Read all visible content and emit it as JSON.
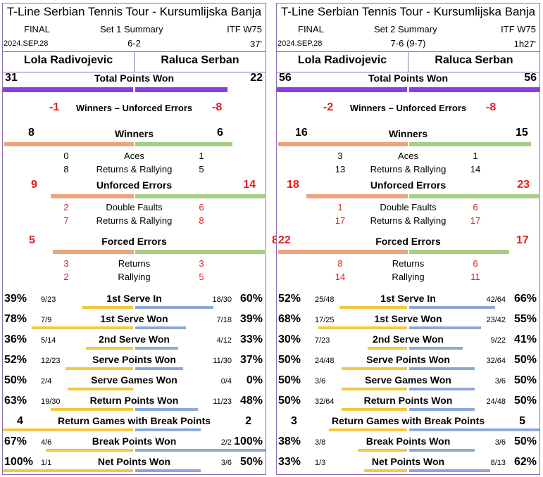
{
  "panels": [
    {
      "title": "T-Line Serbian Tennis Tour - Kursumlijska Banja",
      "round": "FINAL",
      "summary": "Set 1 Summary",
      "event": "ITF W75",
      "date": "2024.SEP.28",
      "score": "6-2",
      "duration": "37'",
      "player1": "Lola Radivojevic",
      "player2": "Raluca Serban",
      "total_points": {
        "label": "Total Points Won",
        "p1": "31",
        "p2": "22",
        "p1_share": 0.585,
        "p2_share": 0.415
      },
      "winners_minus_ue": {
        "label": "Winners – Unforced Errors",
        "p1": "-1",
        "p2": "-8"
      },
      "winners": {
        "label": "Winners",
        "p1": "8",
        "p2": "6",
        "rows": [
          {
            "label": "Aces",
            "p1": "0",
            "p2": "1"
          },
          {
            "label": "Returns & Rallying",
            "p1": "8",
            "p2": "5"
          }
        ]
      },
      "unforced": {
        "label": "Unforced Errors",
        "p1": "9",
        "p2": "14",
        "rows": [
          {
            "label": "Double Faults",
            "p1": "2",
            "p2": "6"
          },
          {
            "label": "Returns & Rallying",
            "p1": "7",
            "p2": "8"
          }
        ]
      },
      "forced": {
        "label": "Forced Errors",
        "p1": "5",
        "p2": "8",
        "rows": [
          {
            "label": "Returns",
            "p1": "3",
            "p2": "3"
          },
          {
            "label": "Rallying",
            "p1": "2",
            "p2": "5"
          }
        ]
      },
      "serve_stats": [
        {
          "label": "1st Serve In",
          "p1_pct": "39%",
          "p1_frac": "9/23",
          "p2_frac": "18/30",
          "p2_pct": "60%",
          "p1_val": 0.39,
          "p2_val": 0.6
        },
        {
          "label": "1st Serve Won",
          "p1_pct": "78%",
          "p1_frac": "7/9",
          "p2_frac": "7/18",
          "p2_pct": "39%",
          "p1_val": 0.78,
          "p2_val": 0.39
        },
        {
          "label": "2nd Serve Won",
          "p1_pct": "36%",
          "p1_frac": "5/14",
          "p2_frac": "4/12",
          "p2_pct": "33%",
          "p1_val": 0.36,
          "p2_val": 0.33
        },
        {
          "label": "Serve Points Won",
          "p1_pct": "52%",
          "p1_frac": "12/23",
          "p2_frac": "11/30",
          "p2_pct": "37%",
          "p1_val": 0.52,
          "p2_val": 0.37
        },
        {
          "label": "Serve Games Won",
          "p1_pct": "50%",
          "p1_frac": "2/4",
          "p2_frac": "0/4",
          "p2_pct": "0%",
          "p1_val": 0.5,
          "p2_val": 0.0
        },
        {
          "label": "Return Points Won",
          "p1_pct": "63%",
          "p1_frac": "19/30",
          "p2_frac": "11/23",
          "p2_pct": "48%",
          "p1_val": 0.63,
          "p2_val": 0.48
        },
        {
          "label": "Return Games with Break Points",
          "p1_pct": "4",
          "p1_frac": "",
          "p2_frac": "",
          "p2_pct": "2",
          "p1_val": 1.0,
          "p2_val": 0.5
        },
        {
          "label": "Break Points Won",
          "p1_pct": "67%",
          "p1_frac": "4/6",
          "p2_frac": "2/2",
          "p2_pct": "100%",
          "p1_val": 0.67,
          "p2_val": 1.0
        },
        {
          "label": "Net Points Won",
          "p1_pct": "100%",
          "p1_frac": "1/1",
          "p2_frac": "3/6",
          "p2_pct": "50%",
          "p1_val": 1.0,
          "p2_val": 0.5
        }
      ]
    },
    {
      "title": "T-Line Serbian Tennis Tour - Kursumlijska Banja",
      "round": "FINAL",
      "summary": "Set 2 Summary",
      "event": "ITF W75",
      "date": "2024.SEP.28",
      "score": "7-6 (9-7)",
      "duration": "1h27'",
      "player1": "Lola Radivojevic",
      "player2": "Raluca Serban",
      "total_points": {
        "label": "Total Points Won",
        "p1": "56",
        "p2": "56",
        "p1_share": 0.5,
        "p2_share": 0.5
      },
      "winners_minus_ue": {
        "label": "Winners – Unforced Errors",
        "p1": "-2",
        "p2": "-8"
      },
      "winners": {
        "label": "Winners",
        "p1": "16",
        "p2": "15",
        "rows": [
          {
            "label": "Aces",
            "p1": "3",
            "p2": "1"
          },
          {
            "label": "Returns & Rallying",
            "p1": "13",
            "p2": "14"
          }
        ]
      },
      "unforced": {
        "label": "Unforced Errors",
        "p1": "18",
        "p2": "23",
        "rows": [
          {
            "label": "Double Faults",
            "p1": "1",
            "p2": "6"
          },
          {
            "label": "Returns & Rallying",
            "p1": "17",
            "p2": "17"
          }
        ]
      },
      "forced": {
        "label": "Forced Errors",
        "p1": "22",
        "p2": "17",
        "rows": [
          {
            "label": "Returns",
            "p1": "8",
            "p2": "6"
          },
          {
            "label": "Rallying",
            "p1": "14",
            "p2": "11"
          }
        ]
      },
      "serve_stats": [
        {
          "label": "1st Serve In",
          "p1_pct": "52%",
          "p1_frac": "25/48",
          "p2_frac": "42/64",
          "p2_pct": "66%",
          "p1_val": 0.52,
          "p2_val": 0.66
        },
        {
          "label": "1st Serve Won",
          "p1_pct": "68%",
          "p1_frac": "17/25",
          "p2_frac": "23/42",
          "p2_pct": "55%",
          "p1_val": 0.68,
          "p2_val": 0.55
        },
        {
          "label": "2nd Serve Won",
          "p1_pct": "30%",
          "p1_frac": "7/23",
          "p2_frac": "9/22",
          "p2_pct": "41%",
          "p1_val": 0.3,
          "p2_val": 0.41
        },
        {
          "label": "Serve Points Won",
          "p1_pct": "50%",
          "p1_frac": "24/48",
          "p2_frac": "32/64",
          "p2_pct": "50%",
          "p1_val": 0.5,
          "p2_val": 0.5
        },
        {
          "label": "Serve Games Won",
          "p1_pct": "50%",
          "p1_frac": "3/6",
          "p2_frac": "3/6",
          "p2_pct": "50%",
          "p1_val": 0.5,
          "p2_val": 0.5
        },
        {
          "label": "Return Points Won",
          "p1_pct": "50%",
          "p1_frac": "32/64",
          "p2_frac": "24/48",
          "p2_pct": "50%",
          "p1_val": 0.5,
          "p2_val": 0.5
        },
        {
          "label": "Return Games with Break Points",
          "p1_pct": "3",
          "p1_frac": "",
          "p2_frac": "",
          "p2_pct": "5",
          "p1_val": 0.6,
          "p2_val": 1.0
        },
        {
          "label": "Break Points Won",
          "p1_pct": "38%",
          "p1_frac": "3/8",
          "p2_frac": "3/6",
          "p2_pct": "50%",
          "p1_val": 0.38,
          "p2_val": 0.5
        },
        {
          "label": "Net Points Won",
          "p1_pct": "33%",
          "p1_frac": "1/3",
          "p2_frac": "8/13",
          "p2_pct": "62%",
          "p1_val": 0.33,
          "p2_val": 0.62
        }
      ]
    }
  ],
  "colors": {
    "total_bar": "#8a3fe0",
    "p1_error_bar": "#eba57e",
    "p2_error_bar": "#a6cf86",
    "p1_serve_bar": "#f3c842",
    "p2_serve_bar": "#8fa8d4",
    "net_value": "#e0201e",
    "border": "#8b6fb0"
  }
}
